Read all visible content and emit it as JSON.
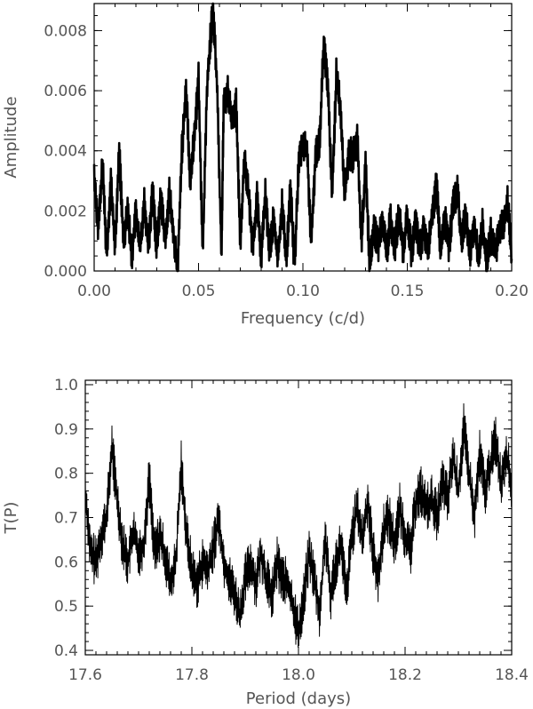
{
  "chart_data": [
    {
      "type": "line",
      "xlabel": "Frequency (c/d)",
      "ylabel": "Amplitude",
      "xlim": [
        0.0,
        0.2
      ],
      "ylim": [
        0.0,
        0.0089
      ],
      "xticks": [
        "0.00",
        "0.05",
        "0.10",
        "0.15",
        "0.20"
      ],
      "xtick_values": [
        0.0,
        0.05,
        0.1,
        0.15,
        0.2
      ],
      "yticks": [
        "0.000",
        "0.002",
        "0.004",
        "0.006",
        "0.008"
      ],
      "ytick_values": [
        0.0,
        0.002,
        0.004,
        0.006,
        0.008
      ],
      "x_minor_step": 0.01,
      "y_minor_step": 0.0005,
      "series": [
        {
          "values": [
            [
              0.0,
              0.0032
            ],
            [
              0.002,
              0.0014
            ],
            [
              0.004,
              0.0035
            ],
            [
              0.006,
              0.0006
            ],
            [
              0.008,
              0.003
            ],
            [
              0.01,
              0.0008
            ],
            [
              0.012,
              0.004
            ],
            [
              0.014,
              0.001
            ],
            [
              0.016,
              0.0021
            ],
            [
              0.018,
              0.0005
            ],
            [
              0.02,
              0.002
            ],
            [
              0.022,
              0.0007
            ],
            [
              0.024,
              0.0023
            ],
            [
              0.026,
              0.0009
            ],
            [
              0.028,
              0.0026
            ],
            [
              0.03,
              0.0008
            ],
            [
              0.032,
              0.0025
            ],
            [
              0.034,
              0.001
            ],
            [
              0.036,
              0.0026
            ],
            [
              0.038,
              0.0012
            ],
            [
              0.04,
              0.0
            ],
            [
              0.042,
              0.004
            ],
            [
              0.044,
              0.0061
            ],
            [
              0.046,
              0.003
            ],
            [
              0.048,
              0.0045
            ],
            [
              0.05,
              0.0064
            ],
            [
              0.052,
              0.0005
            ],
            [
              0.054,
              0.006
            ],
            [
              0.056,
              0.008
            ],
            [
              0.057,
              0.0088
            ],
            [
              0.059,
              0.006
            ],
            [
              0.061,
              0.0004
            ],
            [
              0.062,
              0.0055
            ],
            [
              0.064,
              0.006
            ],
            [
              0.066,
              0.005
            ],
            [
              0.068,
              0.0055
            ],
            [
              0.07,
              0.001
            ],
            [
              0.072,
              0.0038
            ],
            [
              0.074,
              0.0025
            ],
            [
              0.076,
              0.0008
            ],
            [
              0.078,
              0.0024
            ],
            [
              0.08,
              0.0005
            ],
            [
              0.082,
              0.0025
            ],
            [
              0.084,
              0.0007
            ],
            [
              0.086,
              0.0017
            ],
            [
              0.088,
              0.0004
            ],
            [
              0.09,
              0.0022
            ],
            [
              0.092,
              0.0004
            ],
            [
              0.094,
              0.0027
            ],
            [
              0.096,
              0.0002
            ],
            [
              0.098,
              0.0036
            ],
            [
              0.1,
              0.0043
            ],
            [
              0.102,
              0.004
            ],
            [
              0.104,
              0.0009
            ],
            [
              0.106,
              0.0038
            ],
            [
              0.108,
              0.0044
            ],
            [
              0.11,
              0.0076
            ],
            [
              0.112,
              0.006
            ],
            [
              0.114,
              0.0025
            ],
            [
              0.116,
              0.0065
            ],
            [
              0.118,
              0.0054
            ],
            [
              0.12,
              0.0025
            ],
            [
              0.122,
              0.004
            ],
            [
              0.124,
              0.0038
            ],
            [
              0.126,
              0.0045
            ],
            [
              0.128,
              0.001
            ],
            [
              0.13,
              0.0035
            ],
            [
              0.132,
              0.0002
            ],
            [
              0.134,
              0.0015
            ],
            [
              0.136,
              0.0008
            ],
            [
              0.138,
              0.0018
            ],
            [
              0.14,
              0.0006
            ],
            [
              0.142,
              0.0017
            ],
            [
              0.144,
              0.0008
            ],
            [
              0.146,
              0.0019
            ],
            [
              0.148,
              0.0007
            ],
            [
              0.15,
              0.0018
            ],
            [
              0.152,
              0.0006
            ],
            [
              0.154,
              0.0016
            ],
            [
              0.156,
              0.0007
            ],
            [
              0.158,
              0.0014
            ],
            [
              0.16,
              0.0006
            ],
            [
              0.162,
              0.002
            ],
            [
              0.164,
              0.0028
            ],
            [
              0.166,
              0.0006
            ],
            [
              0.168,
              0.0018
            ],
            [
              0.17,
              0.0008
            ],
            [
              0.172,
              0.0022
            ],
            [
              0.174,
              0.0027
            ],
            [
              0.176,
              0.001
            ],
            [
              0.178,
              0.0019
            ],
            [
              0.18,
              0.0006
            ],
            [
              0.182,
              0.0016
            ],
            [
              0.184,
              0.0004
            ],
            [
              0.186,
              0.0015
            ],
            [
              0.188,
              0.0003
            ],
            [
              0.19,
              0.0012
            ],
            [
              0.192,
              0.0006
            ],
            [
              0.194,
              0.0013
            ],
            [
              0.196,
              0.0016
            ],
            [
              0.198,
              0.0023
            ],
            [
              0.2,
              0.0004
            ]
          ]
        }
      ]
    },
    {
      "type": "line",
      "xlabel": "Period (days)",
      "ylabel": "T(P)",
      "xlim": [
        17.6,
        18.4
      ],
      "ylim": [
        0.39,
        1.01
      ],
      "xticks": [
        "17.6",
        "17.8",
        "18.0",
        "18.2",
        "18.4"
      ],
      "xtick_values": [
        17.6,
        17.8,
        18.0,
        18.2,
        18.4
      ],
      "yticks": [
        "0.4",
        "0.5",
        "0.6",
        "0.7",
        "0.8",
        "0.9",
        "1.0"
      ],
      "ytick_values": [
        0.4,
        0.5,
        0.6,
        0.7,
        0.8,
        0.9,
        1.0
      ],
      "x_minor_step": 0.02,
      "y_minor_step": 0.02,
      "series": [
        {
          "values": [
            [
              17.6,
              0.76
            ],
            [
              17.61,
              0.62
            ],
            [
              17.62,
              0.6
            ],
            [
              17.63,
              0.66
            ],
            [
              17.64,
              0.7
            ],
            [
              17.65,
              0.86
            ],
            [
              17.66,
              0.74
            ],
            [
              17.67,
              0.64
            ],
            [
              17.68,
              0.6
            ],
            [
              17.69,
              0.67
            ],
            [
              17.7,
              0.62
            ],
            [
              17.71,
              0.64
            ],
            [
              17.72,
              0.79
            ],
            [
              17.73,
              0.62
            ],
            [
              17.74,
              0.66
            ],
            [
              17.75,
              0.61
            ],
            [
              17.76,
              0.55
            ],
            [
              17.77,
              0.6
            ],
            [
              17.78,
              0.82
            ],
            [
              17.79,
              0.66
            ],
            [
              17.8,
              0.58
            ],
            [
              17.81,
              0.55
            ],
            [
              17.82,
              0.6
            ],
            [
              17.83,
              0.58
            ],
            [
              17.84,
              0.63
            ],
            [
              17.85,
              0.7
            ],
            [
              17.86,
              0.6
            ],
            [
              17.87,
              0.56
            ],
            [
              17.88,
              0.53
            ],
            [
              17.89,
              0.48
            ],
            [
              17.9,
              0.56
            ],
            [
              17.91,
              0.6
            ],
            [
              17.92,
              0.55
            ],
            [
              17.93,
              0.62
            ],
            [
              17.94,
              0.56
            ],
            [
              17.95,
              0.52
            ],
            [
              17.96,
              0.6
            ],
            [
              17.97,
              0.56
            ],
            [
              17.98,
              0.55
            ],
            [
              17.99,
              0.5
            ],
            [
              18.0,
              0.44
            ],
            [
              18.01,
              0.52
            ],
            [
              18.02,
              0.62
            ],
            [
              18.03,
              0.56
            ],
            [
              18.04,
              0.48
            ],
            [
              18.05,
              0.66
            ],
            [
              18.06,
              0.52
            ],
            [
              18.07,
              0.6
            ],
            [
              18.08,
              0.64
            ],
            [
              18.09,
              0.52
            ],
            [
              18.1,
              0.66
            ],
            [
              18.11,
              0.72
            ],
            [
              18.12,
              0.65
            ],
            [
              18.13,
              0.74
            ],
            [
              18.14,
              0.62
            ],
            [
              18.15,
              0.56
            ],
            [
              18.16,
              0.68
            ],
            [
              18.17,
              0.7
            ],
            [
              18.18,
              0.64
            ],
            [
              18.19,
              0.72
            ],
            [
              18.2,
              0.66
            ],
            [
              18.21,
              0.62
            ],
            [
              18.22,
              0.74
            ],
            [
              18.23,
              0.76
            ],
            [
              18.24,
              0.72
            ],
            [
              18.25,
              0.74
            ],
            [
              18.26,
              0.7
            ],
            [
              18.27,
              0.78
            ],
            [
              18.28,
              0.74
            ],
            [
              18.29,
              0.84
            ],
            [
              18.3,
              0.76
            ],
            [
              18.31,
              0.9
            ],
            [
              18.32,
              0.8
            ],
            [
              18.33,
              0.7
            ],
            [
              18.34,
              0.84
            ],
            [
              18.35,
              0.76
            ],
            [
              18.36,
              0.82
            ],
            [
              18.37,
              0.88
            ],
            [
              18.38,
              0.78
            ],
            [
              18.39,
              0.85
            ],
            [
              18.4,
              0.76
            ]
          ]
        }
      ]
    }
  ]
}
